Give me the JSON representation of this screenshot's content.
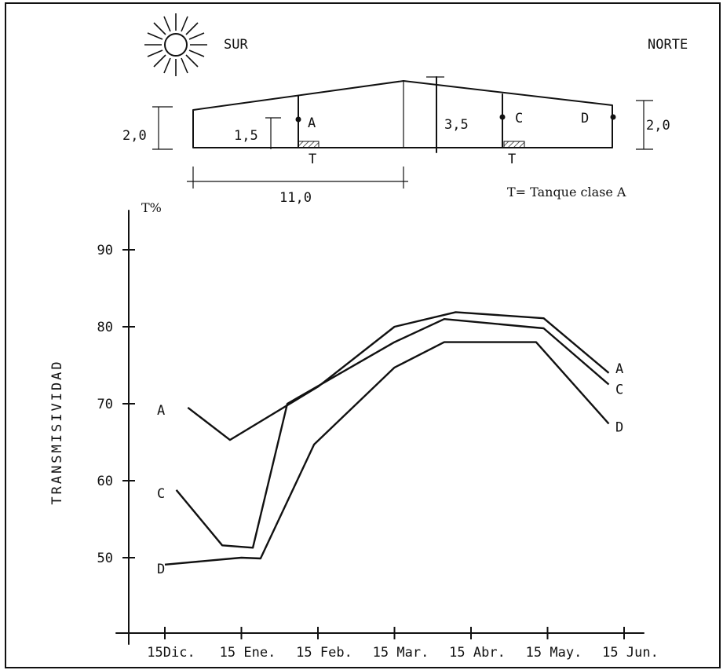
{
  "diagram": {
    "sur_label": "SUR",
    "norte_label": "NORTE",
    "dim_left": "2,0",
    "dim_inner": "1,5",
    "dim_center": "3,5",
    "dim_right": "2,0",
    "dim_width": "11,0",
    "point_a": "A",
    "point_c": "C",
    "point_d": "D",
    "tank_left": "T",
    "tank_right": "T",
    "legend": "T= Tanque clase A"
  },
  "chart_data": {
    "type": "line",
    "ylabel": "TRANSMISIVIDAD",
    "yunit": "T%",
    "ylim": [
      40,
      95
    ],
    "yticks": [
      50,
      60,
      70,
      80,
      90
    ],
    "categories": [
      "15Dic.",
      "15 Ene.",
      "15 Feb.",
      "15 Mar.",
      "15 Abr.",
      "15 May.",
      "15 Jun."
    ],
    "series": [
      {
        "name": "A",
        "points": [
          [
            0.3,
            69.5
          ],
          [
            0.85,
            65.3
          ],
          [
            2.0,
            72.2
          ],
          [
            3.0,
            80.0
          ],
          [
            3.8,
            81.9
          ],
          [
            4.95,
            81.1
          ],
          [
            5.8,
            74.0
          ]
        ]
      },
      {
        "name": "C",
        "points": [
          [
            0.15,
            58.8
          ],
          [
            0.75,
            51.6
          ],
          [
            1.15,
            51.3
          ],
          [
            1.6,
            70.0
          ],
          [
            3.0,
            78.0
          ],
          [
            3.65,
            81.0
          ],
          [
            4.95,
            79.8
          ],
          [
            5.8,
            72.5
          ]
        ]
      },
      {
        "name": "D",
        "points": [
          [
            0.0,
            49.1
          ],
          [
            1.0,
            50.0
          ],
          [
            1.25,
            49.9
          ],
          [
            1.95,
            64.7
          ],
          [
            3.0,
            74.7
          ],
          [
            3.65,
            78.0
          ],
          [
            4.85,
            78.0
          ],
          [
            5.8,
            67.4
          ]
        ]
      }
    ],
    "series_end_labels": [
      {
        "name": "A",
        "y": 74.0
      },
      {
        "name": "C",
        "y": 72.5
      },
      {
        "name": "D",
        "y": 67.4
      }
    ],
    "series_start_labels": [
      {
        "name": "A",
        "y": 69.8
      },
      {
        "name": "C",
        "y": 59.0
      },
      {
        "name": "D",
        "y": 49.2
      }
    ]
  }
}
